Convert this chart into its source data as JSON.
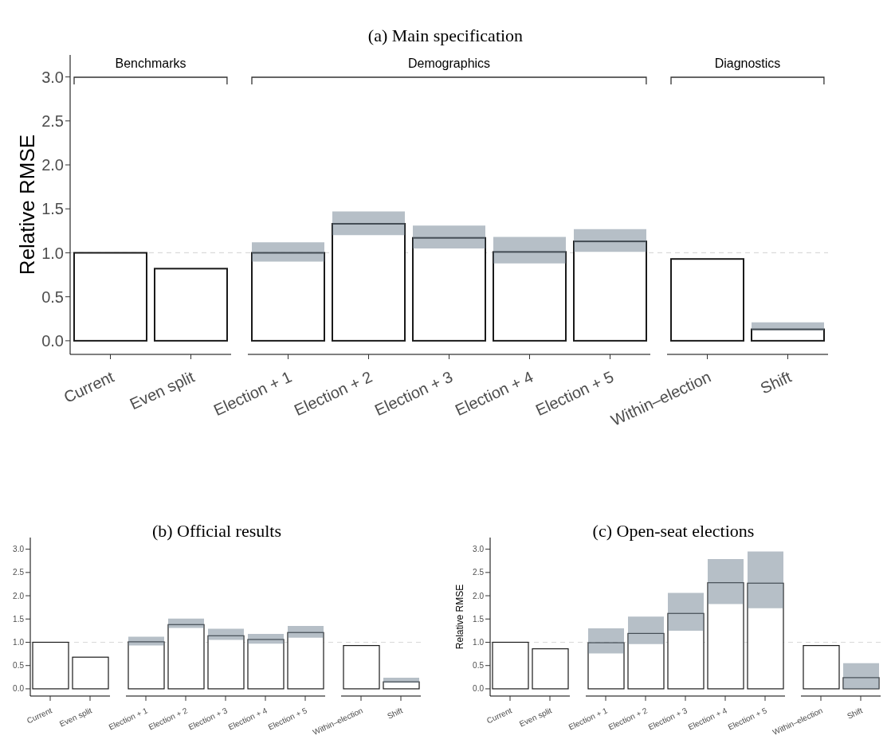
{
  "chart_data": [
    {
      "type": "bar",
      "title": "(a) Main specification",
      "ylabel": "Relative RMSE",
      "categories": [
        "Current",
        "Even split",
        "Election + 1",
        "Election + 2",
        "Election + 3",
        "Election + 4",
        "Election + 5",
        "Within–election",
        "Shift"
      ],
      "values": [
        1.0,
        0.82,
        1.0,
        1.33,
        1.17,
        1.01,
        1.13,
        0.93,
        0.13
      ],
      "errors": [
        null,
        null,
        [
          0.9,
          1.12
        ],
        [
          1.2,
          1.47
        ],
        [
          1.05,
          1.31
        ],
        [
          0.88,
          1.18
        ],
        [
          1.01,
          1.27
        ],
        null,
        [
          0.12,
          0.21
        ]
      ],
      "color": "#ffffff",
      "ylim": [
        -0.155,
        3.25
      ],
      "yticks": [
        {
          "value": 0,
          "label": "0.0"
        },
        {
          "value": 0.5,
          "label": "0.5"
        },
        {
          "value": 1,
          "label": "1.0"
        },
        {
          "value": 1.5,
          "label": "1.5"
        },
        {
          "value": 2,
          "label": "2.0"
        },
        {
          "value": 2.5,
          "label": "2.5"
        },
        {
          "value": 3,
          "label": "3.0"
        }
      ],
      "ref_lines": [
        {
          "axis": "y",
          "value": 1,
          "color": "#d9d9d9",
          "line_style": "dashed"
        }
      ],
      "annotations": [
        "Benchmarks",
        "Demographics",
        "Diagnostics"
      ]
    },
    {
      "type": "bar",
      "title": "(b) Official results",
      "categories": [
        "Current",
        "Even split",
        "Election + 1",
        "Election + 2",
        "Election + 3",
        "Election + 4",
        "Election + 5",
        "Within–election",
        "Shift"
      ],
      "values": [
        1.0,
        0.68,
        1.01,
        1.38,
        1.14,
        1.06,
        1.21,
        0.93,
        0.15
      ],
      "errors": [
        null,
        null,
        [
          0.93,
          1.12
        ],
        [
          1.31,
          1.51
        ],
        [
          1.05,
          1.29
        ],
        [
          0.97,
          1.18
        ],
        [
          1.1,
          1.35
        ],
        null,
        [
          0.13,
          0.24
        ]
      ],
      "color": "#ffffff",
      "ylim": [
        -0.155,
        3.25
      ],
      "yticks": [
        {
          "value": 0,
          "label": "0.0"
        },
        {
          "value": 0.5,
          "label": "0.5"
        },
        {
          "value": 1,
          "label": "1.0"
        },
        {
          "value": 1.5,
          "label": "1.5"
        },
        {
          "value": 2,
          "label": "2.0"
        },
        {
          "value": 2.5,
          "label": "2.5"
        },
        {
          "value": 3,
          "label": "3.0"
        }
      ],
      "ref_lines": [
        {
          "axis": "y",
          "value": 1,
          "color": "#d9d9d9",
          "line_style": "dashed"
        }
      ]
    },
    {
      "type": "bar",
      "title": "(c) Open-seat elections",
      "ylabel": "Relative RMSE",
      "categories": [
        "Current",
        "Even split",
        "Election + 1",
        "Election + 2",
        "Election + 3",
        "Election + 4",
        "Election + 5",
        "Within–election",
        "Shift"
      ],
      "values": [
        1.0,
        0.86,
        0.99,
        1.19,
        1.62,
        2.28,
        2.27,
        0.93,
        0.24
      ],
      "errors": [
        null,
        null,
        [
          0.76,
          1.3
        ],
        [
          0.96,
          1.55
        ],
        [
          1.25,
          2.06
        ],
        [
          1.82,
          2.79
        ],
        [
          1.73,
          2.95
        ],
        null,
        [
          0.0,
          0.55
        ]
      ],
      "color": "#ffffff",
      "ylim": [
        -0.155,
        3.25
      ],
      "yticks": [
        {
          "value": 0,
          "label": "0.0"
        },
        {
          "value": 0.5,
          "label": "0.5"
        },
        {
          "value": 1,
          "label": "1.0"
        },
        {
          "value": 1.5,
          "label": "1.5"
        },
        {
          "value": 2,
          "label": "2.0"
        },
        {
          "value": 2.5,
          "label": "2.5"
        },
        {
          "value": 3,
          "label": "3.0"
        }
      ],
      "ref_lines": [
        {
          "axis": "y",
          "value": 1,
          "color": "#d9d9d9",
          "line_style": "dashed"
        }
      ]
    }
  ]
}
